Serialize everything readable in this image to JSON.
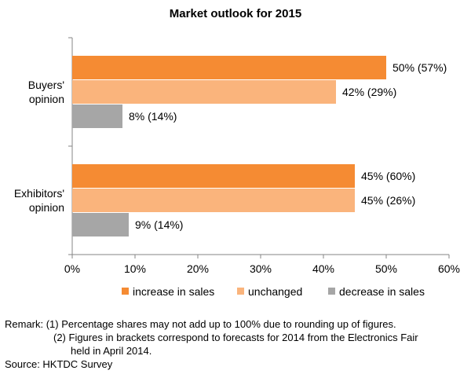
{
  "chart_data": {
    "type": "bar",
    "orientation": "horizontal",
    "title": "Market outlook for 2015",
    "categories": [
      [
        "Buyers'",
        "opinion"
      ],
      [
        "Exhibitors'",
        "opinion"
      ]
    ],
    "series": [
      {
        "name": "increase in sales",
        "color": "#F58B33",
        "values": [
          50,
          45
        ],
        "labels": [
          "50% (57%)",
          "45% (60%)"
        ]
      },
      {
        "name": "unchanged",
        "color": "#FAB47C",
        "values": [
          42,
          45
        ],
        "labels": [
          "42% (29%)",
          "45% (26%)"
        ]
      },
      {
        "name": "decrease in sales",
        "color": "#A6A6A6",
        "values": [
          8,
          9
        ],
        "labels": [
          "8% (14%)",
          "9% (14%)"
        ]
      }
    ],
    "xlim": [
      0,
      60
    ],
    "xticks": [
      "0%",
      "10%",
      "20%",
      "30%",
      "40%",
      "50%",
      "60%"
    ],
    "legend_position": "bottom",
    "gridlines": false
  },
  "notes": {
    "remark_1": "Remark: (1) Percentage shares may not add up to 100% due to rounding up of figures.",
    "remark_2a": "(2) Figures in brackets correspond to forecasts for 2014 from the Electronics Fair",
    "remark_2b": "held in April 2014.",
    "source": "Source: HKTDC Survey"
  }
}
